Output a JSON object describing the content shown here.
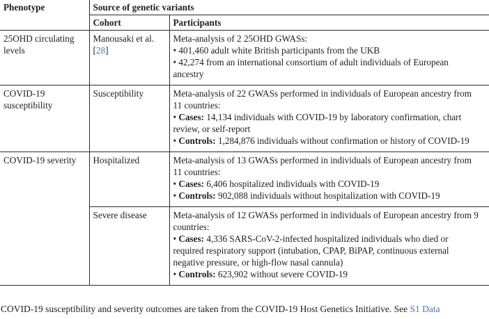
{
  "header": {
    "phenotype": "Phenotype",
    "source_group": "Source of genetic variants",
    "cohort": "Cohort",
    "participants": "Participants"
  },
  "bullet_char": "•",
  "rows": [
    {
      "phenotype": "25OHD circulating levels",
      "cohort": {
        "pre": "Manousaki et al. [",
        "link": "28",
        "post": "]"
      },
      "intro": "Meta-analysis of 2 25OHD GWASs:",
      "bullets": [
        {
          "label": "",
          "text": "401,460 adult white British participants from the UKB"
        },
        {
          "label": "",
          "text": "42,274 from an international consortium of adult individuals of European ancestry"
        }
      ]
    },
    {
      "phenotype": "COVID-19 susceptibility",
      "cohort": {
        "pre": "Susceptibility",
        "link": "",
        "post": ""
      },
      "intro": "Meta-analysis of 22 GWASs performed in individuals of European ancestry from 11 countries:",
      "bullets": [
        {
          "label": "Cases:",
          "text": "14,134 individuals with COVID-19 by laboratory confirmation, chart review, or self-report"
        },
        {
          "label": "Controls:",
          "text": "1,284,876 individuals without confirmation or history of COVID-19"
        }
      ]
    },
    {
      "phenotype": "COVID-19 severity",
      "cohort": {
        "pre": "Hospitalized",
        "link": "",
        "post": ""
      },
      "intro": "Meta-analysis of 13 GWASs performed in individuals of European ancestry from 11 countries:",
      "bullets": [
        {
          "label": "Cases:",
          "text": "6,406 hospitalized individuals with COVID-19"
        },
        {
          "label": "Controls:",
          "text": "902,088 individuals without hospitalization with COVID-19"
        }
      ]
    },
    {
      "phenotype": "",
      "cohort": {
        "pre": "Severe disease",
        "link": "",
        "post": ""
      },
      "intro": "Meta-analysis of 12 GWASs performed in individuals of European ancestry from 9 countries:",
      "bullets": [
        {
          "label": "Cases:",
          "text": "4,336 SARS-CoV-2-infected hospitalized individuals who died or required respiratory support (intubation, CPAP, BiPAP, continuous external negative pressure, or high-flow nasal cannula)"
        },
        {
          "label": "Controls:",
          "text": "623,902 without severe COVID-19"
        }
      ]
    }
  ],
  "footer": {
    "text": "COVID-19 susceptibility and severity outcomes are taken from the COVID-19 Host Genetics Initiative. See ",
    "link": "S1 Data"
  },
  "colors": {
    "link": "#4a74bc",
    "text": "#1e1e1e",
    "border": "#2b2b2b",
    "background": "#ffffff"
  }
}
